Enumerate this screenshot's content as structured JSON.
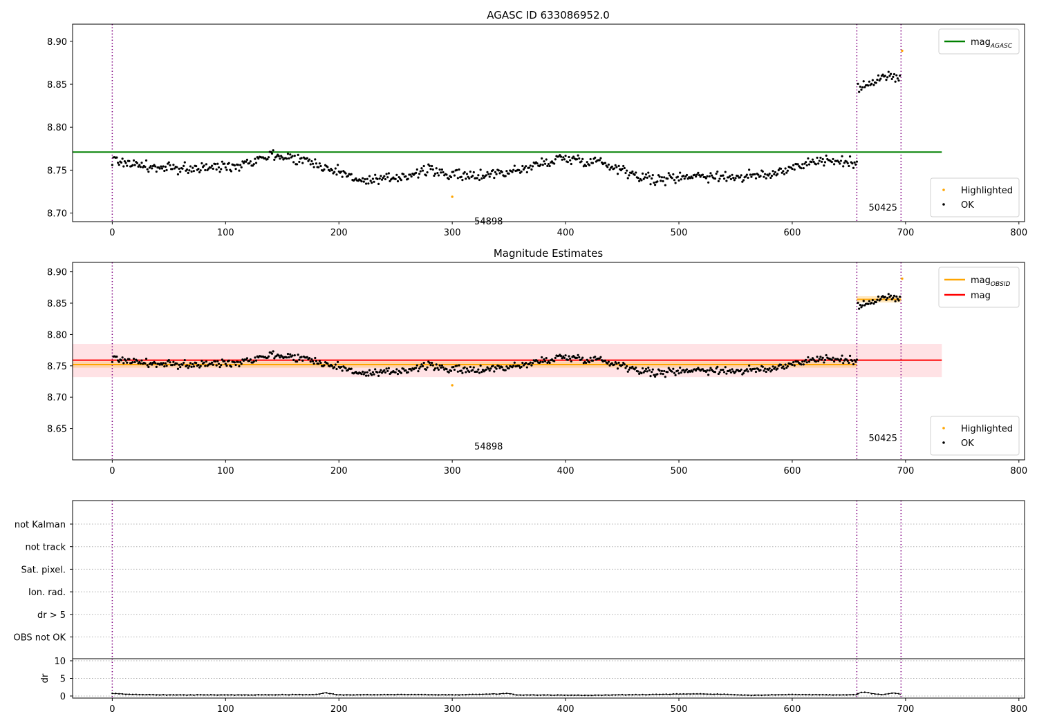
{
  "chart_data": [
    {
      "type": "scatter",
      "title": "AGASC ID 633086952.0",
      "xlim": [
        -35,
        805
      ],
      "ylim": [
        8.69,
        8.92
      ],
      "xticks": [
        0,
        100,
        200,
        300,
        400,
        500,
        600,
        700,
        800
      ],
      "yticks": [
        8.7,
        8.75,
        8.8,
        8.85,
        8.9
      ],
      "ytick_labels": [
        "8.70",
        "8.75",
        "8.80",
        "8.85",
        "8.90"
      ],
      "vlines": [
        0,
        657,
        696
      ],
      "obsid_labels": [
        {
          "text": "54898",
          "x": 328,
          "y": 8.69
        },
        {
          "text": "50425",
          "x": 676,
          "y": 8.706
        }
      ],
      "lines": [
        {
          "name": "mag_AGASC",
          "y": 8.771,
          "x_range": [
            -35,
            732
          ],
          "color": "#008000"
        }
      ],
      "segments": [
        {
          "x0": 0,
          "x1": 657,
          "trend": [
            [
              0,
              8.762
            ],
            [
              40,
              8.752
            ],
            [
              80,
              8.752
            ],
            [
              110,
              8.756
            ],
            [
              140,
              8.768
            ],
            [
              170,
              8.762
            ],
            [
              200,
              8.748
            ],
            [
              225,
              8.736
            ],
            [
              245,
              8.74
            ],
            [
              280,
              8.75
            ],
            [
              310,
              8.742
            ],
            [
              360,
              8.75
            ],
            [
              395,
              8.764
            ],
            [
              430,
              8.76
            ],
            [
              460,
              8.746
            ],
            [
              480,
              8.738
            ],
            [
              510,
              8.744
            ],
            [
              550,
              8.742
            ],
            [
              580,
              8.744
            ],
            [
              600,
              8.754
            ],
            [
              625,
              8.762
            ],
            [
              657,
              8.758
            ]
          ],
          "noise": 0.007
        },
        {
          "x0": 658,
          "x1": 695,
          "trend": [
            [
              658,
              8.842
            ],
            [
              670,
              8.855
            ],
            [
              685,
              8.86
            ],
            [
              695,
              8.856
            ]
          ],
          "noise": 0.007
        }
      ],
      "highlighted": [
        {
          "x": 300,
          "y": 8.719
        },
        {
          "x": 697,
          "y": 8.889
        }
      ],
      "legend_top": [
        {
          "label": "mag",
          "subscript": "AGASC",
          "color": "#008000"
        }
      ],
      "legend_bottom": [
        {
          "label": "Highlighted",
          "color": "#ffa500"
        },
        {
          "label": "OK",
          "color": "#000000"
        }
      ]
    },
    {
      "type": "scatter",
      "title": "Magnitude Estimates",
      "xlim": [
        -35,
        805
      ],
      "ylim": [
        8.6,
        8.915
      ],
      "xticks": [
        0,
        100,
        200,
        300,
        400,
        500,
        600,
        700,
        800
      ],
      "yticks": [
        8.65,
        8.7,
        8.75,
        8.8,
        8.85,
        8.9
      ],
      "ytick_labels": [
        "8.65",
        "8.70",
        "8.75",
        "8.80",
        "8.85",
        "8.90"
      ],
      "vlines": [
        0,
        657,
        696
      ],
      "obsid_labels": [
        {
          "text": "54898",
          "x": 328,
          "y": 8.621
        },
        {
          "text": "50425",
          "x": 676,
          "y": 8.634
        }
      ],
      "band": {
        "y0": 8.732,
        "y1": 8.785,
        "x_range": [
          -35,
          732
        ],
        "color": "#ffdde0"
      },
      "orange_bands": [
        {
          "x0": -35,
          "x1": 657,
          "y0": 8.747,
          "y1": 8.757
        },
        {
          "x0": 657,
          "x1": 696,
          "y0": 8.851,
          "y1": 8.861
        }
      ],
      "lines": [
        {
          "name": "mag_OBSID",
          "y": 8.752,
          "x_range": [
            -35,
            657
          ],
          "color": "#ffa500"
        },
        {
          "name": "mag_OBSID",
          "y": 8.856,
          "x_range": [
            657,
            696
          ],
          "color": "#ffa500"
        },
        {
          "name": "mag",
          "y": 8.759,
          "x_range": [
            -35,
            732
          ],
          "color": "#ff0000"
        }
      ],
      "segments": [
        {
          "x0": 0,
          "x1": 657,
          "trend": [
            [
              0,
              8.762
            ],
            [
              40,
              8.752
            ],
            [
              80,
              8.752
            ],
            [
              110,
              8.756
            ],
            [
              140,
              8.768
            ],
            [
              170,
              8.762
            ],
            [
              200,
              8.748
            ],
            [
              225,
              8.736
            ],
            [
              245,
              8.74
            ],
            [
              280,
              8.75
            ],
            [
              310,
              8.742
            ],
            [
              360,
              8.75
            ],
            [
              395,
              8.764
            ],
            [
              430,
              8.76
            ],
            [
              460,
              8.746
            ],
            [
              480,
              8.738
            ],
            [
              510,
              8.744
            ],
            [
              550,
              8.742
            ],
            [
              580,
              8.744
            ],
            [
              600,
              8.754
            ],
            [
              625,
              8.762
            ],
            [
              657,
              8.758
            ]
          ],
          "noise": 0.007
        },
        {
          "x0": 658,
          "x1": 695,
          "trend": [
            [
              658,
              8.842
            ],
            [
              670,
              8.855
            ],
            [
              685,
              8.86
            ],
            [
              695,
              8.856
            ]
          ],
          "noise": 0.007
        }
      ],
      "highlighted": [
        {
          "x": 300,
          "y": 8.719
        },
        {
          "x": 697,
          "y": 8.889
        }
      ],
      "legend_top": [
        {
          "label": "mag",
          "subscript": "OBSID",
          "color": "#ffa500"
        },
        {
          "label": "mag",
          "subscript": "",
          "color": "#ff0000"
        }
      ],
      "legend_bottom": [
        {
          "label": "Highlighted",
          "color": "#ffa500"
        },
        {
          "label": "OK",
          "color": "#000000"
        }
      ]
    },
    {
      "type": "line",
      "xlim": [
        -35,
        805
      ],
      "xticks": [
        0,
        100,
        200,
        300,
        400,
        500,
        600,
        700,
        800
      ],
      "flag_labels": [
        "not Kalman",
        "not track",
        "Sat. pixel.",
        "Ion. rad.",
        "dr > 5",
        "OBS not OK"
      ],
      "vlines": [
        0,
        657,
        696
      ],
      "ylabel": "dr",
      "ylim": [
        0,
        10
      ],
      "yticks": [
        0,
        5,
        10
      ],
      "dr_trend": [
        [
          0,
          0.7
        ],
        [
          20,
          0.4
        ],
        [
          60,
          0.3
        ],
        [
          120,
          0.3
        ],
        [
          180,
          0.4
        ],
        [
          188,
          0.9
        ],
        [
          200,
          0.3
        ],
        [
          260,
          0.4
        ],
        [
          300,
          0.3
        ],
        [
          340,
          0.6
        ],
        [
          352,
          0.7
        ],
        [
          355,
          0.3
        ],
        [
          420,
          0.2
        ],
        [
          470,
          0.4
        ],
        [
          510,
          0.6
        ],
        [
          540,
          0.5
        ],
        [
          560,
          0.2
        ],
        [
          600,
          0.4
        ],
        [
          640,
          0.3
        ],
        [
          657,
          0.4
        ],
        [
          660,
          1.0
        ],
        [
          665,
          1.1
        ],
        [
          672,
          0.6
        ],
        [
          680,
          0.4
        ],
        [
          690,
          0.9
        ],
        [
          696,
          0.4
        ]
      ]
    }
  ]
}
